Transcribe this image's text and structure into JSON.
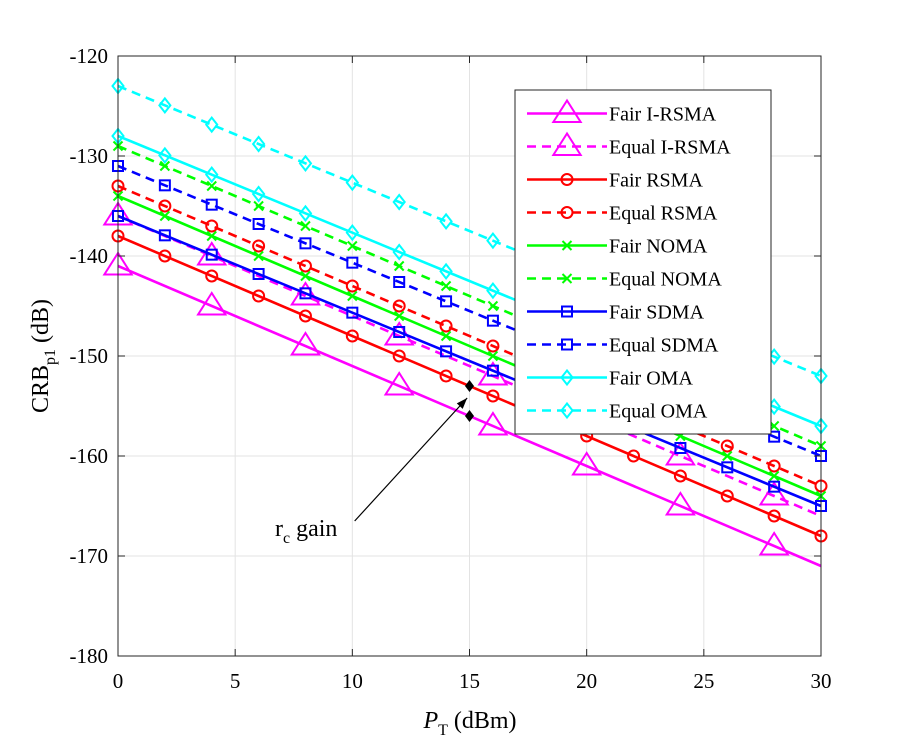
{
  "chart_data": {
    "type": "line",
    "title": "",
    "xlabel": {
      "main": "P",
      "sub": "T",
      "unit": " (dBm)"
    },
    "ylabel": {
      "main": "CRB",
      "sub": "p1",
      "unit": " (dB)"
    },
    "xlim": [
      0,
      30
    ],
    "ylim": [
      -180,
      -120
    ],
    "xticks": [
      0,
      5,
      10,
      15,
      20,
      25,
      30
    ],
    "yticks": [
      -180,
      -170,
      -160,
      -150,
      -140,
      -130,
      -120
    ],
    "grid": true,
    "legend_position": "top-right",
    "series": [
      {
        "name": "Fair I-RSMA",
        "color": "#ff00ff",
        "dash": "solid",
        "marker": "triangle",
        "x": [
          0,
          30
        ],
        "y": [
          -141,
          -171
        ],
        "marker_x": [
          0,
          4,
          8,
          12,
          16,
          20,
          24,
          28
        ]
      },
      {
        "name": "Equal I-RSMA",
        "color": "#ff00ff",
        "dash": "dashed",
        "marker": "triangle",
        "x": [
          0,
          30
        ],
        "y": [
          -136,
          -166
        ],
        "marker_x": [
          0,
          4,
          8,
          12,
          16,
          20,
          24,
          28
        ]
      },
      {
        "name": "Fair RSMA",
        "color": "#ff0000",
        "dash": "solid",
        "marker": "circle",
        "x": [
          0,
          30
        ],
        "y": [
          -138,
          -168
        ],
        "marker_x": [
          0,
          2,
          4,
          6,
          8,
          10,
          12,
          14,
          16,
          18,
          20,
          22,
          24,
          26,
          28,
          30
        ]
      },
      {
        "name": "Equal RSMA",
        "color": "#ff0000",
        "dash": "dashed",
        "marker": "circle",
        "x": [
          0,
          30
        ],
        "y": [
          -133,
          -163
        ],
        "marker_x": [
          0,
          2,
          4,
          6,
          8,
          10,
          12,
          14,
          16,
          18,
          20,
          22,
          24,
          26,
          28,
          30
        ]
      },
      {
        "name": "Fair NOMA",
        "color": "#00ff00",
        "dash": "solid",
        "marker": "x",
        "x": [
          0,
          30
        ],
        "y": [
          -134,
          -164
        ],
        "marker_x": [
          0,
          2,
          4,
          6,
          8,
          10,
          12,
          14,
          16,
          18,
          20,
          22,
          24,
          26,
          28,
          30
        ]
      },
      {
        "name": "Equal NOMA",
        "color": "#00ff00",
        "dash": "dashed",
        "marker": "x",
        "x": [
          0,
          30
        ],
        "y": [
          -129,
          -159
        ],
        "marker_x": [
          0,
          2,
          4,
          6,
          8,
          10,
          12,
          14,
          16,
          18,
          20,
          22,
          24,
          26,
          28,
          30
        ]
      },
      {
        "name": "Fair SDMA",
        "color": "#0000ff",
        "dash": "solid",
        "marker": "square",
        "x": [
          0,
          30
        ],
        "y": [
          -136,
          -165
        ],
        "marker_x": [
          0,
          2,
          4,
          6,
          8,
          10,
          12,
          14,
          16,
          18,
          20,
          22,
          24,
          26,
          28,
          30
        ]
      },
      {
        "name": "Equal SDMA",
        "color": "#0000ff",
        "dash": "dashed",
        "marker": "square",
        "x": [
          0,
          30
        ],
        "y": [
          -131,
          -160
        ],
        "marker_x": [
          0,
          2,
          4,
          6,
          8,
          10,
          12,
          14,
          16,
          18,
          20,
          22,
          24,
          26,
          28,
          30
        ]
      },
      {
        "name": "Fair OMA",
        "color": "#00ffff",
        "dash": "solid",
        "marker": "diamond",
        "x": [
          0,
          30
        ],
        "y": [
          -128,
          -157
        ],
        "marker_x": [
          0,
          2,
          4,
          6,
          8,
          10,
          12,
          14,
          16,
          18,
          20,
          22,
          24,
          26,
          28,
          30
        ]
      },
      {
        "name": "Equal OMA",
        "color": "#00ffff",
        "dash": "dashed",
        "marker": "diamond",
        "x": [
          0,
          30
        ],
        "y": [
          -123,
          -152
        ],
        "marker_x": [
          0,
          2,
          4,
          6,
          8,
          10,
          12,
          14,
          16,
          18,
          20,
          22,
          24,
          26,
          28,
          30
        ]
      }
    ],
    "annotation": {
      "text_main": "r",
      "text_sub": "c",
      "text_rest": " gain",
      "text_x": 6.7,
      "text_y": -168,
      "arrow_tail": [
        10.1,
        -166.5
      ],
      "arrow_head": [
        14.9,
        -154.2
      ],
      "marker_points": [
        [
          15,
          -153
        ],
        [
          15,
          -156
        ]
      ]
    }
  }
}
